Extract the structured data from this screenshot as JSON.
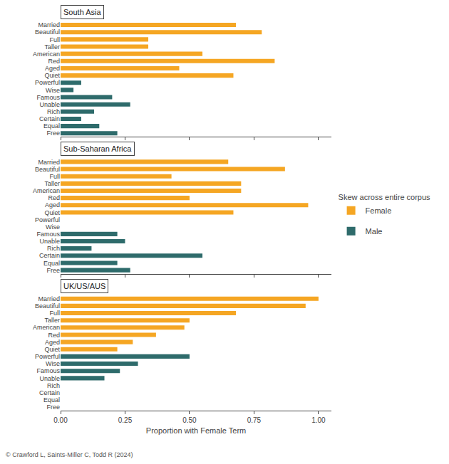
{
  "chart_data": [
    {
      "type": "bar",
      "orientation": "horizontal",
      "title": "South Asia",
      "categories": [
        "Married",
        "Beautiful",
        "Full",
        "Taller",
        "American",
        "Red",
        "Aged",
        "Quiet",
        "Powerful",
        "Wise",
        "Famous",
        "Unable",
        "Rich",
        "Certain",
        "Equal",
        "Free"
      ],
      "series": [
        {
          "name": "Female",
          "color": "#F5A623",
          "values": [
            0.68,
            0.78,
            0.34,
            0.34,
            0.55,
            0.83,
            0.46,
            0.67,
            0.0,
            0.0,
            0.0,
            0.0,
            0.0,
            0.0,
            0.0,
            0.0
          ]
        },
        {
          "name": "Male",
          "color": "#2E6B6B",
          "values": [
            0.0,
            0.0,
            0.0,
            0.0,
            0.0,
            0.0,
            0.0,
            0.0,
            0.08,
            0.05,
            0.2,
            0.27,
            0.13,
            0.08,
            0.15,
            0.22
          ]
        }
      ],
      "xlim": [
        0.0,
        1.05
      ],
      "xticks": [
        {
          "value": 0.0,
          "label": "0.00"
        },
        {
          "value": 0.25,
          "label": "0.25"
        },
        {
          "value": 0.5,
          "label": "0.50"
        },
        {
          "value": 0.75,
          "label": "0.75"
        },
        {
          "value": 1.0,
          "label": "1.00"
        }
      ],
      "grid": false,
      "tick_labels": "y"
    },
    {
      "type": "bar",
      "orientation": "horizontal",
      "title": "Sub-Saharan Africa",
      "categories": [
        "Married",
        "Beautiful",
        "Full",
        "Taller",
        "American",
        "Red",
        "Aged",
        "Quiet",
        "Powerful",
        "Wise",
        "Famous",
        "Unable",
        "Rich",
        "Certain",
        "Equal",
        "Free"
      ],
      "series": [
        {
          "name": "Female",
          "color": "#F5A623",
          "values": [
            0.65,
            0.87,
            0.43,
            0.7,
            0.7,
            0.5,
            0.96,
            0.67,
            0.0,
            0.0,
            0.0,
            0.0,
            0.0,
            0.0,
            0.0,
            0.0
          ]
        },
        {
          "name": "Male",
          "color": "#2E6B6B",
          "values": [
            0.0,
            0.0,
            0.0,
            0.0,
            0.0,
            0.0,
            0.0,
            0.0,
            0.0,
            0.0,
            0.22,
            0.25,
            0.12,
            0.55,
            0.22,
            0.27
          ]
        }
      ],
      "xlim": [
        0.0,
        1.05
      ],
      "xticks": [
        {
          "value": 0.0,
          "label": "0.00"
        },
        {
          "value": 0.25,
          "label": "0.25"
        },
        {
          "value": 0.5,
          "label": "0.50"
        },
        {
          "value": 0.75,
          "label": "0.75"
        },
        {
          "value": 1.0,
          "label": "1.00"
        }
      ],
      "grid": false,
      "tick_labels": "y",
      "legend": "right",
      "legend_title": "Skew across entire corpus"
    },
    {
      "type": "bar",
      "orientation": "horizontal",
      "title": "UK/US/AUS",
      "categories": [
        "Married",
        "Beautiful",
        "Full",
        "Taller",
        "American",
        "Red",
        "Aged",
        "Quiet",
        "Powerful",
        "Wise",
        "Famous",
        "Unable",
        "Rich",
        "Certain",
        "Equal",
        "Free"
      ],
      "series": [
        {
          "name": "Female",
          "color": "#F5A623",
          "values": [
            1.0,
            0.95,
            0.68,
            0.5,
            0.48,
            0.37,
            0.28,
            0.22,
            0.0,
            0.0,
            0.0,
            0.0,
            0.0,
            0.0,
            0.0,
            0.0
          ]
        },
        {
          "name": "Male",
          "color": "#2E6B6B",
          "values": [
            0.0,
            0.0,
            0.0,
            0.0,
            0.0,
            0.0,
            0.0,
            0.0,
            0.5,
            0.3,
            0.23,
            0.17,
            0.0,
            0.0,
            0.0,
            0.0
          ]
        }
      ],
      "xlim": [
        0.0,
        1.05
      ],
      "xticks": [
        {
          "value": 0.0,
          "label": "0.00"
        },
        {
          "value": 0.25,
          "label": "0.25"
        },
        {
          "value": 0.5,
          "label": "0.50"
        },
        {
          "value": 0.75,
          "label": "0.75"
        },
        {
          "value": 1.0,
          "label": "1.00"
        }
      ],
      "grid": false,
      "xlabel": "Proportion with Female Term",
      "annotations": [
        "© Crawford L, Saints-Miller C, Todd R (2024)"
      ]
    }
  ]
}
